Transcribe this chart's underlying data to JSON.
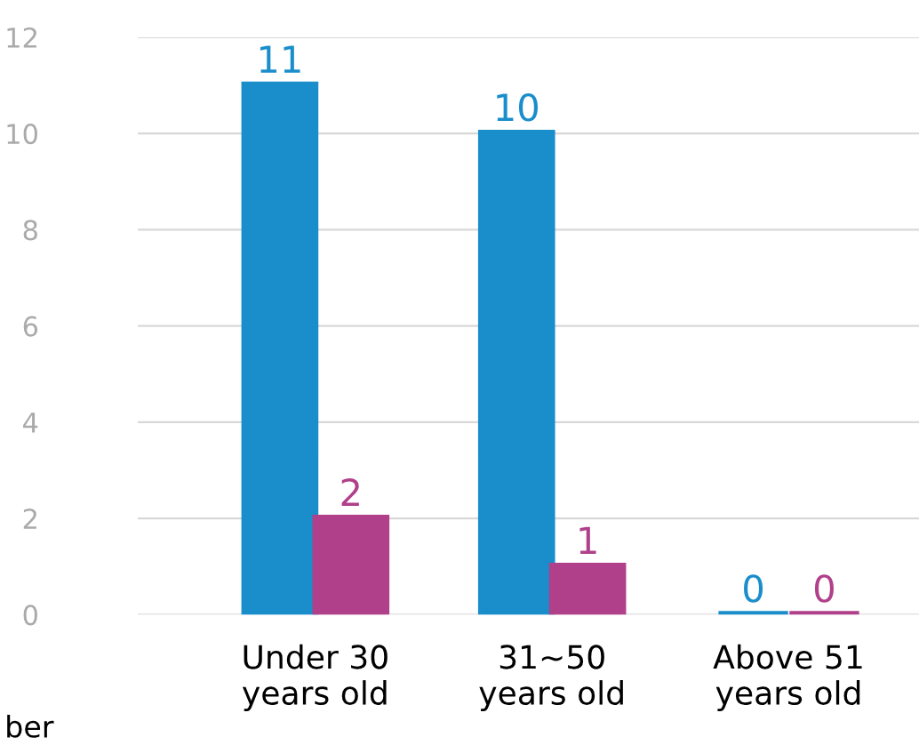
{
  "chart_data": {
    "type": "bar",
    "categories": [
      "Under 30\nyears old",
      "31~50\nyears old",
      "Above 51\nyears old"
    ],
    "series": [
      {
        "color": "#1a8dcb",
        "values": [
          11,
          10,
          0
        ]
      },
      {
        "color": "#b0408a",
        "values": [
          2,
          1,
          0
        ]
      }
    ],
    "ylim": [
      0,
      12
    ],
    "yticks": [
      0,
      2,
      4,
      6,
      8,
      10,
      12
    ],
    "grid": "y",
    "data_labels": true,
    "annotations": [
      "ber"
    ]
  }
}
